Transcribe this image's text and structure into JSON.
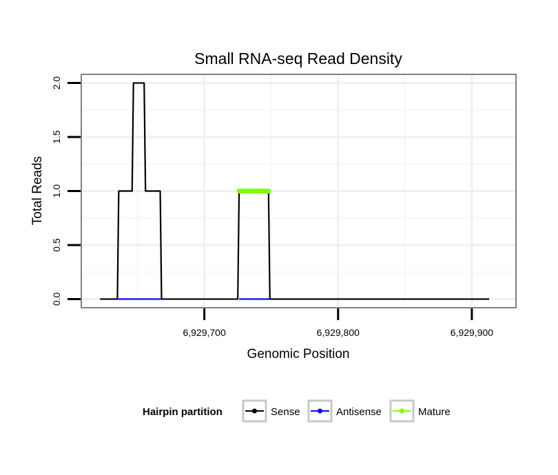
{
  "chart_data": {
    "type": "line",
    "title": "Small RNA-seq Read Density",
    "xlabel": "Genomic Position",
    "ylabel": "Total Reads",
    "xlim": [
      6929608,
      6929933
    ],
    "ylim": [
      -0.08,
      2.08
    ],
    "x_ticks": [
      6929700,
      6929800,
      6929900
    ],
    "x_tick_labels": [
      "6,929,700",
      "6,929,800",
      "6,929,900"
    ],
    "y_ticks": [
      0,
      0.5,
      1,
      1.5,
      2
    ],
    "y_tick_labels": [
      "0.0",
      "0.5",
      "1.0",
      "1.5",
      "2.0"
    ],
    "grid": true,
    "series": [
      {
        "name": "Sense",
        "color": "#000000",
        "x": [
          6929622,
          6929635,
          6929636,
          6929646,
          6929647,
          6929655,
          6929656,
          6929667,
          6929668,
          6929725,
          6929726,
          6929748,
          6929749,
          6929913
        ],
        "y": [
          0,
          0,
          1,
          1,
          2,
          2,
          1,
          1,
          0,
          0,
          1,
          1,
          0,
          0
        ]
      },
      {
        "name": "Antisense",
        "color": "#0000ff",
        "x": [
          6929635,
          6929668,
          6929726,
          6929749
        ],
        "y": [
          0,
          0,
          0,
          0
        ],
        "segments": [
          [
            0,
            1
          ],
          [
            2,
            3
          ]
        ]
      },
      {
        "name": "Mature",
        "color": "#7fff00",
        "x": [
          6929726,
          6929748
        ],
        "y": [
          1,
          1
        ]
      }
    ],
    "legend": {
      "title": "Hairpin partition",
      "position": "bottom",
      "entries": [
        {
          "label": "Sense",
          "color": "#000000"
        },
        {
          "label": "Antisense",
          "color": "#0000ff"
        },
        {
          "label": "Mature",
          "color": "#7fff00"
        }
      ]
    }
  }
}
